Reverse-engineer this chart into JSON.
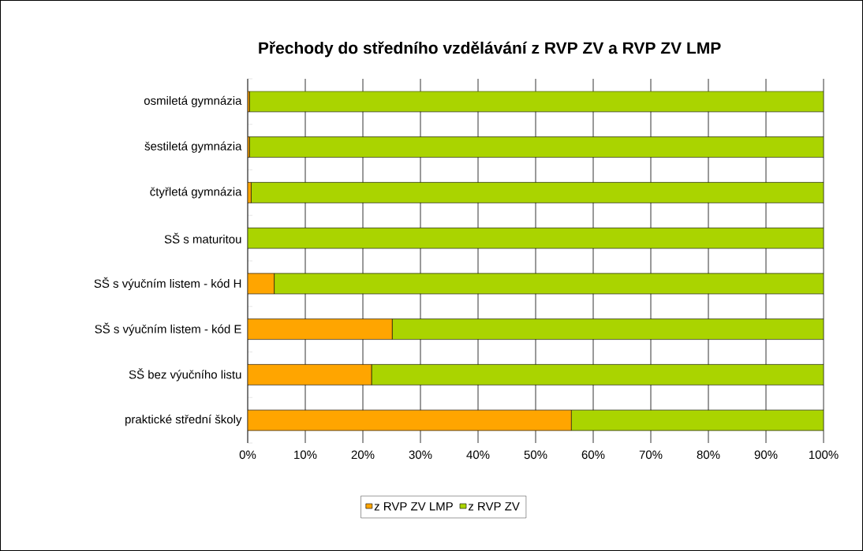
{
  "chart_data": {
    "type": "bar",
    "orientation": "horizontal",
    "stacked": true,
    "title": "Přechody do středního vzdělávání z RVP ZV a RVP ZV LMP",
    "categories": [
      "osmiletá gymnázia",
      "šestiletá gymnázia",
      "čtyřletá gymnázia",
      "SŠ s maturitou",
      "SŠ s výučním listem - kód H",
      "SŠ s výučním listem - kód E",
      "SŠ bez výučního listu",
      "praktické střední školy"
    ],
    "series": [
      {
        "name": "z RVP ZV LMP",
        "color": "#ffa500",
        "values": [
          0.3,
          0.3,
          0.6,
          0,
          4.6,
          25.1,
          21.5,
          56.2
        ]
      },
      {
        "name": "z RVP ZV",
        "color": "#aad400",
        "values": [
          99.7,
          99.7,
          99.4,
          100,
          95.4,
          74.9,
          78.5,
          43.8
        ]
      }
    ],
    "xlim": [
      0,
      100
    ],
    "xticks": [
      {
        "value": 0,
        "label": "0%"
      },
      {
        "value": 10,
        "label": "10%"
      },
      {
        "value": 20,
        "label": "20%"
      },
      {
        "value": 30,
        "label": "30%"
      },
      {
        "value": 40,
        "label": "40%"
      },
      {
        "value": 50,
        "label": "50%"
      },
      {
        "value": 60,
        "label": "60%"
      },
      {
        "value": 70,
        "label": "70%"
      },
      {
        "value": 80,
        "label": "80%"
      },
      {
        "value": 90,
        "label": "90%"
      },
      {
        "value": 100,
        "label": "100%"
      }
    ],
    "grid": "x",
    "legend": "bottom"
  }
}
